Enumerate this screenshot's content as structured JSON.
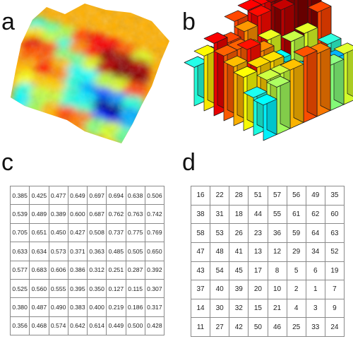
{
  "labels": {
    "a": "a",
    "b": "b",
    "c": "c",
    "d": "d"
  },
  "colormap": [
    "#00007f",
    "#0000ff",
    "#0080ff",
    "#00ffff",
    "#80ff80",
    "#ffff00",
    "#ff8000",
    "#ff0000",
    "#7f0000"
  ],
  "grid_c": [
    [
      "0.385",
      "0.425",
      "0.477",
      "0.649",
      "0.697",
      "0.694",
      "0.638",
      "0.506"
    ],
    [
      "0.539",
      "0.489",
      "0.389",
      "0.600",
      "0.687",
      "0.762",
      "0.763",
      "0.742"
    ],
    [
      "0.705",
      "0.651",
      "0.450",
      "0.427",
      "0.508",
      "0.737",
      "0.775",
      "0.769"
    ],
    [
      "0.633",
      "0.634",
      "0.573",
      "0.371",
      "0.363",
      "0.485",
      "0.505",
      "0.650"
    ],
    [
      "0.577",
      "0.683",
      "0.606",
      "0.386",
      "0.312",
      "0.251",
      "0.287",
      "0.392"
    ],
    [
      "0.525",
      "0.560",
      "0.555",
      "0.395",
      "0.350",
      "0.127",
      "0.115",
      "0.307"
    ],
    [
      "0.380",
      "0.487",
      "0.490",
      "0.383",
      "0.400",
      "0.219",
      "0.186",
      "0.317"
    ],
    [
      "0.356",
      "0.468",
      "0.574",
      "0.642",
      "0.614",
      "0.449",
      "0.500",
      "0.428"
    ]
  ],
  "grid_d": [
    [
      "16",
      "22",
      "28",
      "51",
      "57",
      "56",
      "49",
      "35"
    ],
    [
      "38",
      "31",
      "18",
      "44",
      "55",
      "61",
      "62",
      "60"
    ],
    [
      "58",
      "53",
      "26",
      "23",
      "36",
      "59",
      "64",
      "63"
    ],
    [
      "47",
      "48",
      "41",
      "13",
      "12",
      "29",
      "34",
      "52"
    ],
    [
      "43",
      "54",
      "45",
      "17",
      "8",
      "5",
      "6",
      "19"
    ],
    [
      "37",
      "40",
      "39",
      "20",
      "10",
      "2",
      "1",
      "7"
    ],
    [
      "14",
      "30",
      "32",
      "15",
      "21",
      "4",
      "3",
      "9"
    ],
    [
      "11",
      "27",
      "42",
      "50",
      "46",
      "25",
      "33",
      "24"
    ]
  ]
}
